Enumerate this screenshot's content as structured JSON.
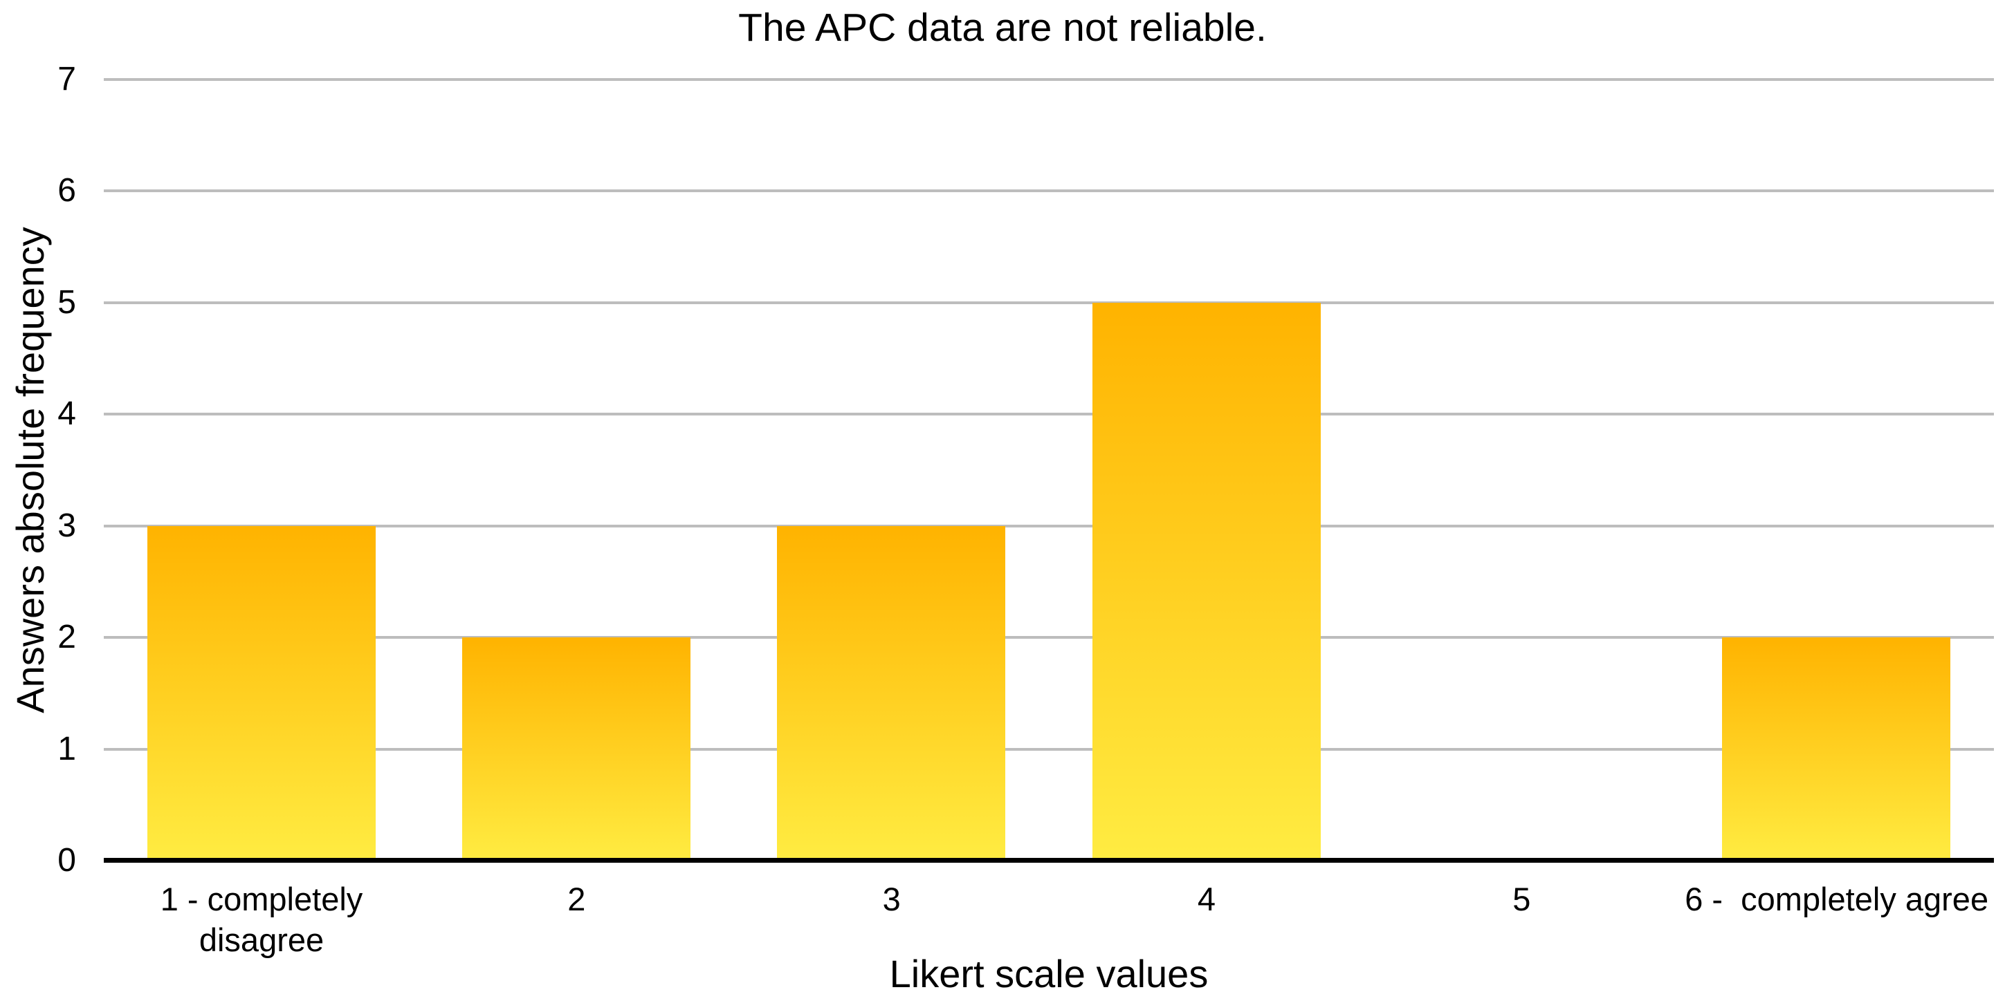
{
  "chart_data": {
    "type": "bar",
    "title": "The APC data are not reliable.",
    "xlabel": "Likert scale values",
    "ylabel": "Answers absolute frequency",
    "categories": [
      "1 - completely disagree",
      "2",
      "3",
      "4",
      "5",
      "6 -  completely agree"
    ],
    "values": [
      3,
      2,
      3,
      5,
      0,
      2
    ],
    "ylim": [
      0,
      7
    ],
    "yticks": [
      0,
      1,
      2,
      3,
      4,
      5,
      6,
      7
    ],
    "grid": "horizontal-gridlines",
    "legend": "none",
    "colors": {
      "bar_gradient_top": "#FFB300",
      "bar_gradient_bottom": "#FFEC42",
      "gridline": "#BDBDBD",
      "axis_line": "#000000",
      "text": "#000000",
      "background": "#FFFFFF"
    }
  }
}
